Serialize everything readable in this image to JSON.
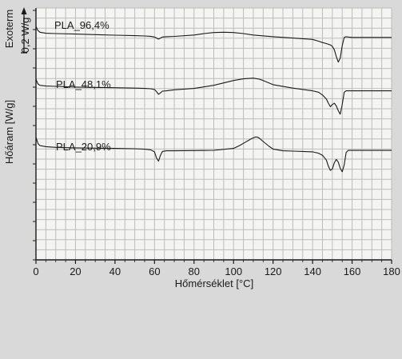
{
  "chart_data": {
    "type": "line",
    "xlabel": "Hőmérséklet [°C]",
    "ylabel": "Hőáram [W/g]",
    "xlim": [
      0,
      180
    ],
    "x_ticks": [
      0,
      20,
      40,
      60,
      80,
      100,
      120,
      140,
      160,
      180
    ],
    "grid": true,
    "colors": {
      "background": "#d9d9d9",
      "plot_bg": "#f4f4f2",
      "grid": "#bdbdbd",
      "line": "#1a1a1a"
    },
    "scale_bar": {
      "top_label": "Exoterm",
      "value_label": "0,2 W/g"
    },
    "series": [
      {
        "name": "PLA_96,4%",
        "x": [
          0,
          0.5,
          1,
          2,
          5,
          10,
          20,
          30,
          40,
          50,
          55,
          58,
          60,
          61,
          62,
          63,
          64,
          66,
          70,
          80,
          85,
          90,
          95,
          100,
          105,
          110,
          120,
          130,
          140,
          143,
          145,
          147,
          148,
          149,
          150,
          151,
          152,
          153,
          154,
          155,
          156,
          157,
          158,
          160,
          170,
          180
        ],
        "y": [
          0.0,
          -0.3,
          -0.6,
          -0.85,
          -1.0,
          -1.05,
          -1.12,
          -1.2,
          -1.28,
          -1.35,
          -1.4,
          -1.44,
          -1.55,
          -1.7,
          -1.85,
          -1.7,
          -1.55,
          -1.5,
          -1.45,
          -1.25,
          -1.05,
          -0.9,
          -0.85,
          -0.9,
          -1.05,
          -1.25,
          -1.5,
          -1.7,
          -1.9,
          -2.15,
          -2.35,
          -2.5,
          -2.6,
          -2.7,
          -2.9,
          -3.4,
          -4.4,
          -5.2,
          -4.6,
          -2.8,
          -1.6,
          -1.5,
          -1.55,
          -1.6,
          -1.6,
          -1.6
        ]
      },
      {
        "name": "PLA_48,1%",
        "x": [
          0,
          0.5,
          1,
          2,
          5,
          10,
          20,
          30,
          40,
          50,
          55,
          58,
          60,
          61,
          62,
          63,
          64,
          66,
          70,
          80,
          90,
          100,
          105,
          110,
          113,
          115,
          120,
          130,
          140,
          143,
          145,
          147,
          148,
          149,
          150,
          151,
          152,
          153,
          154,
          155,
          156,
          157,
          158,
          160,
          170,
          180
        ],
        "y": [
          -4.3,
          -4.65,
          -5.0,
          -5.2,
          -5.3,
          -5.35,
          -5.45,
          -5.5,
          -5.55,
          -5.6,
          -5.65,
          -5.7,
          -5.8,
          -6.1,
          -6.5,
          -6.3,
          -6.05,
          -6.0,
          -5.85,
          -5.65,
          -5.2,
          -4.5,
          -4.25,
          -4.15,
          -4.3,
          -4.5,
          -5.1,
          -5.6,
          -6.0,
          -6.2,
          -6.6,
          -7.2,
          -7.8,
          -8.3,
          -8.0,
          -7.8,
          -8.2,
          -8.9,
          -9.4,
          -8.0,
          -6.2,
          -6.0,
          -6.0,
          -6.0,
          -6.0,
          -6.0
        ]
      },
      {
        "name": "PLA_20,9%",
        "x": [
          0,
          0.5,
          1,
          2,
          5,
          10,
          20,
          30,
          40,
          50,
          55,
          58,
          60,
          61,
          62,
          63,
          64,
          66,
          70,
          80,
          90,
          100,
          103,
          106,
          109,
          111,
          112,
          113,
          115,
          118,
          120,
          125,
          130,
          140,
          143,
          145,
          147,
          148,
          149,
          150,
          151,
          152,
          153,
          154,
          155,
          156,
          157,
          158,
          160,
          170,
          180
        ],
        "y": [
          -8.0,
          -8.4,
          -8.9,
          -9.2,
          -9.35,
          -9.45,
          -9.52,
          -9.57,
          -9.6,
          -9.65,
          -9.72,
          -9.8,
          -10.1,
          -11.0,
          -11.45,
          -10.6,
          -10.05,
          -9.95,
          -9.95,
          -9.92,
          -9.88,
          -9.6,
          -9.2,
          -8.7,
          -8.2,
          -7.95,
          -7.95,
          -8.1,
          -8.6,
          -9.3,
          -9.7,
          -9.95,
          -10.0,
          -10.1,
          -10.3,
          -10.6,
          -11.3,
          -12.2,
          -12.8,
          -12.6,
          -11.7,
          -11.2,
          -11.6,
          -12.5,
          -13.0,
          -12.0,
          -10.2,
          -9.9,
          -9.9,
          -9.9,
          -9.9
        ]
      }
    ]
  }
}
